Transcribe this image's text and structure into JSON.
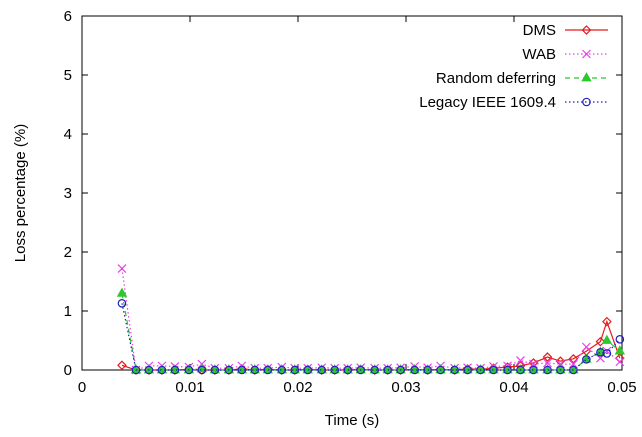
{
  "chart_data": {
    "type": "line",
    "title": "",
    "xlabel": "Time (s)",
    "ylabel": "Loss percentage (%)",
    "xlim": [
      0,
      0.05
    ],
    "ylim": [
      0,
      6
    ],
    "xticks": [
      "0",
      "0.01",
      "0.02",
      "0.03",
      "0.04",
      "0.05"
    ],
    "yticks": [
      "0",
      "1",
      "2",
      "3",
      "4",
      "5",
      "6"
    ],
    "grid": false,
    "legend_position": "top-right",
    "series": [
      {
        "name": "DMS",
        "color": "#e41a1c",
        "marker": "diamond",
        "line": "solid",
        "x": [
          0.0037,
          0.005,
          0.0062,
          0.0074,
          0.0086,
          0.0099,
          0.0111,
          0.0123,
          0.0136,
          0.0148,
          0.016,
          0.0172,
          0.0185,
          0.0197,
          0.0209,
          0.0222,
          0.0234,
          0.0246,
          0.0258,
          0.0271,
          0.0283,
          0.0295,
          0.0308,
          0.032,
          0.0332,
          0.0345,
          0.0357,
          0.0369,
          0.0381,
          0.0394,
          0.0406,
          0.0418,
          0.0431,
          0.0443,
          0.0455,
          0.0467,
          0.048,
          0.0486,
          0.0498
        ],
        "y": [
          0.08,
          0,
          0,
          0,
          0,
          0.01,
          0,
          0,
          0,
          0.02,
          0,
          0.01,
          0,
          0,
          0.01,
          0,
          0,
          0,
          0.01,
          0,
          0,
          0,
          0.01,
          0,
          0.01,
          0,
          0.02,
          0.01,
          0.03,
          0.05,
          0.07,
          0.12,
          0.22,
          0.15,
          0.19,
          0.32,
          0.48,
          0.82,
          0.2
        ]
      },
      {
        "name": "WAB",
        "color": "#e93fe9",
        "marker": "x",
        "line": "dotted",
        "x": [
          0.0037,
          0.005,
          0.0062,
          0.0074,
          0.0086,
          0.0099,
          0.0111,
          0.0123,
          0.0136,
          0.0148,
          0.016,
          0.0172,
          0.0185,
          0.0197,
          0.0209,
          0.0222,
          0.0234,
          0.0246,
          0.0258,
          0.0271,
          0.0283,
          0.0295,
          0.0308,
          0.032,
          0.0332,
          0.0345,
          0.0357,
          0.0369,
          0.0381,
          0.0394,
          0.0406,
          0.0418,
          0.0431,
          0.0443,
          0.0455,
          0.0467,
          0.048,
          0.0486,
          0.0498
        ],
        "y": [
          1.72,
          0,
          0.07,
          0.07,
          0.06,
          0.05,
          0.1,
          0.03,
          0.03,
          0.07,
          0.03,
          0.03,
          0.05,
          0.03,
          0.03,
          0.04,
          0.03,
          0.03,
          0.04,
          0.03,
          0.03,
          0.04,
          0.06,
          0.04,
          0.07,
          0.03,
          0.04,
          0.03,
          0.06,
          0.07,
          0.16,
          0.1,
          0.12,
          0.1,
          0.1,
          0.39,
          0.2,
          0.32,
          0.14
        ]
      },
      {
        "name": "Random deferring",
        "color": "#2ec72e",
        "marker": "triangle",
        "line": "dashed",
        "x": [
          0.0037,
          0.005,
          0.0062,
          0.0074,
          0.0086,
          0.0099,
          0.0111,
          0.0123,
          0.0136,
          0.0148,
          0.016,
          0.0172,
          0.0185,
          0.0197,
          0.0209,
          0.0222,
          0.0234,
          0.0246,
          0.0258,
          0.0271,
          0.0283,
          0.0295,
          0.0308,
          0.032,
          0.0332,
          0.0345,
          0.0357,
          0.0369,
          0.0381,
          0.0394,
          0.0406,
          0.0418,
          0.0431,
          0.0443,
          0.0455,
          0.0467,
          0.048,
          0.0486,
          0.0498
        ],
        "y": [
          1.3,
          0,
          0,
          0,
          0,
          0,
          0.02,
          0,
          0,
          0,
          0,
          0,
          0,
          0,
          0,
          0,
          0,
          0,
          0,
          0,
          0,
          0,
          0,
          0,
          0,
          0,
          0,
          0,
          0,
          0,
          0,
          0,
          0,
          0,
          0,
          0.18,
          0.3,
          0.5,
          0.32
        ]
      },
      {
        "name": "Legacy IEEE 1609.4",
        "color": "#1f1fbf",
        "marker": "circle",
        "line": "dotted",
        "x": [
          0.0037,
          0.005,
          0.0062,
          0.0074,
          0.0086,
          0.0099,
          0.0111,
          0.0123,
          0.0136,
          0.0148,
          0.016,
          0.0172,
          0.0185,
          0.0197,
          0.0209,
          0.0222,
          0.0234,
          0.0246,
          0.0258,
          0.0271,
          0.0283,
          0.0295,
          0.0308,
          0.032,
          0.0332,
          0.0345,
          0.0357,
          0.0369,
          0.0381,
          0.0394,
          0.0406,
          0.0418,
          0.0431,
          0.0443,
          0.0455,
          0.0467,
          0.048,
          0.0486,
          0.0498
        ],
        "y": [
          1.13,
          0,
          0,
          0,
          0,
          0,
          0,
          0,
          0,
          0,
          0,
          0,
          0,
          0,
          0,
          0,
          0,
          0,
          0,
          0,
          0,
          0,
          0,
          0,
          0,
          0,
          0,
          0,
          0,
          0,
          0,
          0,
          0,
          0,
          0,
          0.18,
          0.3,
          0.28,
          0.52
        ]
      }
    ]
  }
}
